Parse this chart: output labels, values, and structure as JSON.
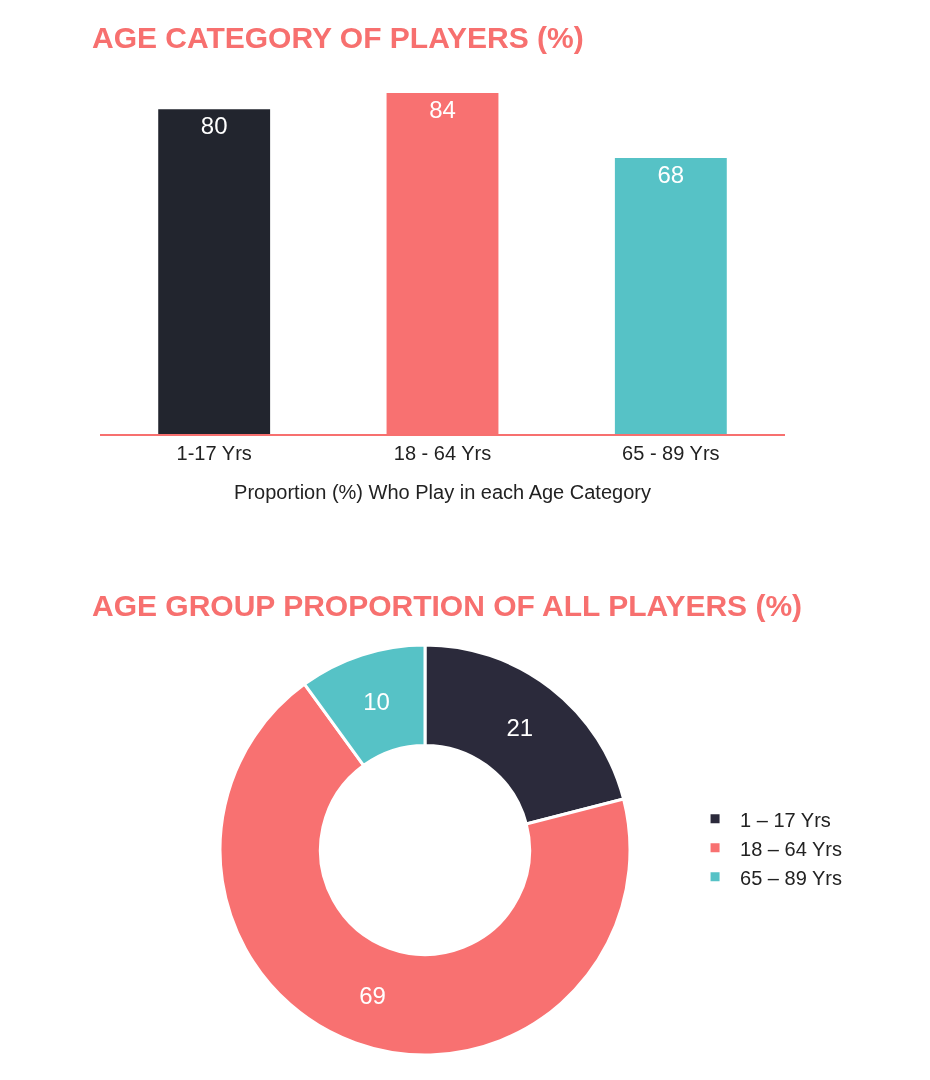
{
  "chart_data": [
    {
      "type": "bar",
      "title": "AGE CATEGORY OF PLAYERS (%)",
      "xlabel": "Proportion (%) Who Play in each Age Category",
      "categories": [
        "1-17 Yrs",
        "18 - 64 Yrs",
        "65 - 89 Yrs"
      ],
      "values": [
        80,
        84,
        68
      ],
      "colors": [
        "#22252e",
        "#f87171",
        "#56c2c6"
      ],
      "data_labels": true,
      "tick_labels": "x"
    },
    {
      "type": "donut",
      "title": "AGE GROUP PROPORTION OF ALL PLAYERS (%)",
      "categories": [
        "1 – 17 Yrs",
        "18 – 64 Yrs",
        "65 – 89 Yrs"
      ],
      "values": [
        21,
        69,
        10
      ],
      "colors": [
        "#2b2a3b",
        "#f87171",
        "#56c2c6"
      ],
      "data_labels": true,
      "legend": "right"
    }
  ]
}
